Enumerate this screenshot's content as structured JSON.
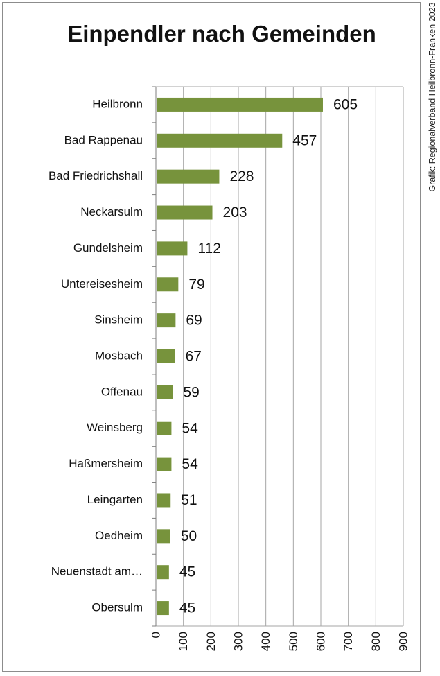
{
  "source_credit": "Grafik: Regionalverband Heilbronn-Franken 2023",
  "chart_data": {
    "type": "bar",
    "orientation": "horizontal",
    "title": "Einpendler nach Gemeinden",
    "categories": [
      "Heilbronn",
      "Bad Rappenau",
      "Bad Friedrichshall",
      "Neckarsulm",
      "Gundelsheim",
      "Untereisesheim",
      "Sinsheim",
      "Mosbach",
      "Offenau",
      "Weinsberg",
      "Haßmersheim",
      "Leingarten",
      "Oedheim",
      "Neuenstadt am…",
      "Obersulm"
    ],
    "values": [
      605,
      457,
      228,
      203,
      112,
      79,
      69,
      67,
      59,
      54,
      54,
      51,
      50,
      45,
      45
    ],
    "xlim": [
      0,
      900
    ],
    "xticks": [
      "0",
      "100",
      "200",
      "300",
      "400",
      "500",
      "600",
      "700",
      "800",
      "900"
    ],
    "grid": true,
    "colors": {
      "bar": "#77933c",
      "grid": "#a6a6a6"
    }
  }
}
